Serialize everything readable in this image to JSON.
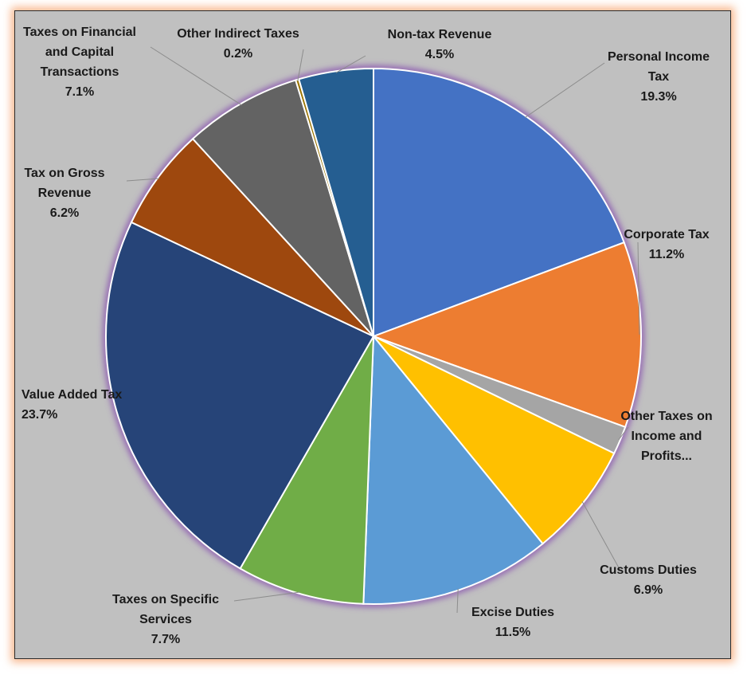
{
  "chart_data": {
    "type": "pie",
    "title": "",
    "start": "top, clockwise",
    "slices": [
      {
        "label": "Personal Income Tax",
        "value": 19.3,
        "display": "19.3%",
        "color": "#4472c4"
      },
      {
        "label": "Corporate Tax",
        "value": 11.2,
        "display": "11.2%",
        "color": "#ed7d31"
      },
      {
        "label": "Other Taxes on Income and Profits...",
        "value": 1.7,
        "display": "",
        "color": "#a5a5a5"
      },
      {
        "label": "Customs Duties",
        "value": 6.9,
        "display": "6.9%",
        "color": "#ffc000"
      },
      {
        "label": "Excise Duties",
        "value": 11.5,
        "display": "11.5%",
        "color": "#5b9bd5"
      },
      {
        "label": "Taxes on Specific Services",
        "value": 7.7,
        "display": "7.7%",
        "color": "#70ad47"
      },
      {
        "label": "Value Added Tax",
        "value": 23.7,
        "display": "23.7%",
        "color": "#264478"
      },
      {
        "label": "Tax on Gross Revenue",
        "value": 6.2,
        "display": "6.2%",
        "color": "#9e480e"
      },
      {
        "label": "Taxes on Financial and Capital Transactions",
        "value": 7.1,
        "display": "7.1%",
        "color": "#636363"
      },
      {
        "label": "Other Indirect Taxes",
        "value": 0.2,
        "display": "0.2%",
        "color": "#997300"
      },
      {
        "label": "Non-tax Revenue",
        "value": 4.5,
        "display": "4.5%",
        "color": "#255e91"
      }
    ]
  },
  "labels": [
    {
      "lines": [
        "Personal Income",
        "Tax",
        "19.3%"
      ]
    },
    {
      "lines": [
        "Corporate Tax",
        "11.2%"
      ]
    },
    {
      "lines": [
        "Other Taxes on",
        "Income and",
        "Profits..."
      ]
    },
    {
      "lines": [
        "Customs  Duties",
        "6.9%"
      ]
    },
    {
      "lines": [
        "Excise Duties",
        "11.5%"
      ]
    },
    {
      "lines": [
        "Taxes on Specific",
        "Services",
        "7.7%"
      ]
    },
    {
      "lines": [
        "Value Added Tax",
        "23.7%"
      ]
    },
    {
      "lines": [
        "Tax on Gross",
        "Revenue",
        "6.2%"
      ]
    },
    {
      "lines": [
        "Taxes on Financial",
        "and Capital",
        "Transactions",
        "7.1%"
      ]
    },
    {
      "lines": [
        "Other Indirect Taxes",
        "0.2%"
      ]
    },
    {
      "lines": [
        "Non-tax Revenue",
        "4.5%"
      ]
    }
  ]
}
